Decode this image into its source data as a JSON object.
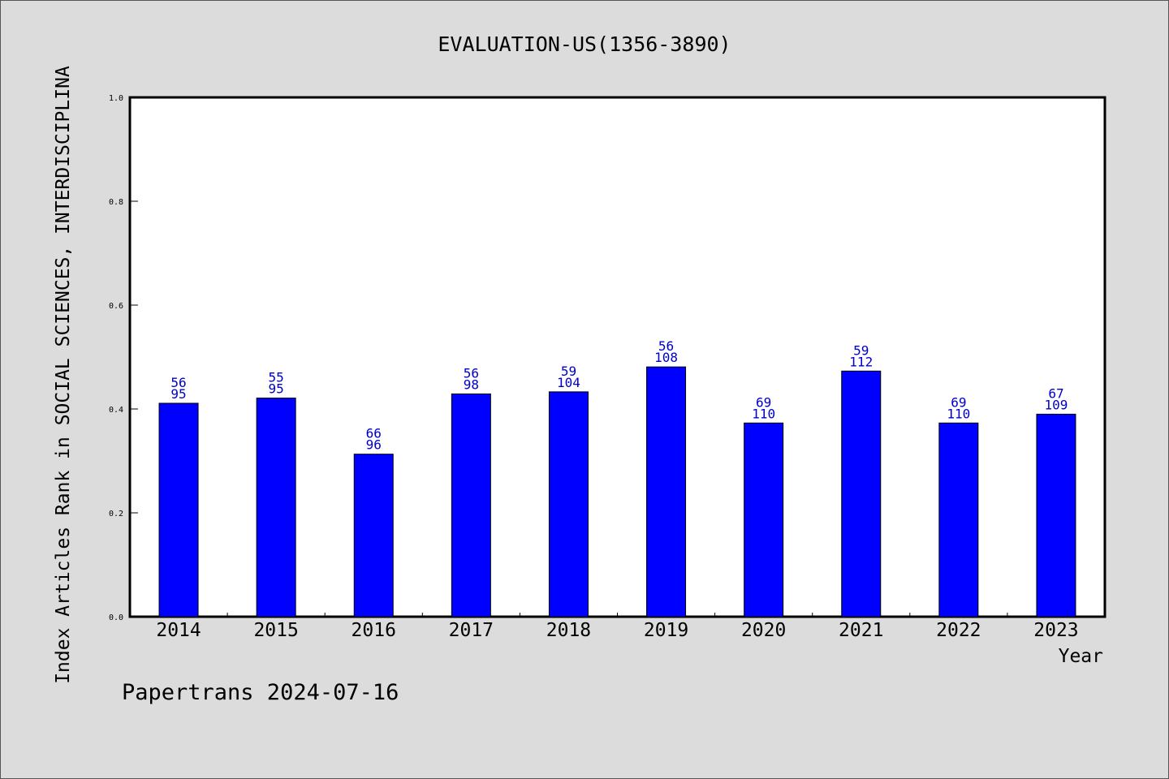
{
  "chart_data": {
    "type": "bar",
    "title": "EVALUATION-US(1356-3890)",
    "xlabel": "Year",
    "ylabel": "Index Articles Rank in SOCIAL SCIENCES, INTERDISCIPLINA",
    "ylim": [
      0,
      1.0
    ],
    "yticks": [
      "0.0",
      "0.2",
      "0.4",
      "0.6",
      "0.8",
      "1.0"
    ],
    "ytick_values": [
      0,
      0.2,
      0.4,
      0.6,
      0.8,
      1.0
    ],
    "categories": [
      "2014",
      "2015",
      "2016",
      "2017",
      "2018",
      "2019",
      "2020",
      "2021",
      "2022",
      "2023"
    ],
    "values": [
      0.411,
      0.421,
      0.313,
      0.429,
      0.433,
      0.481,
      0.373,
      0.473,
      0.373,
      0.39
    ],
    "rank": [
      "56",
      "55",
      "66",
      "56",
      "59",
      "56",
      "69",
      "59",
      "69",
      "67"
    ],
    "total": [
      "95",
      "95",
      "96",
      "98",
      "104",
      "108",
      "110",
      "112",
      "110",
      "109"
    ],
    "bar_color": "#0000ff",
    "label_color": "#0000cc",
    "grid": false
  },
  "footer": "Papertrans 2024-07-16"
}
